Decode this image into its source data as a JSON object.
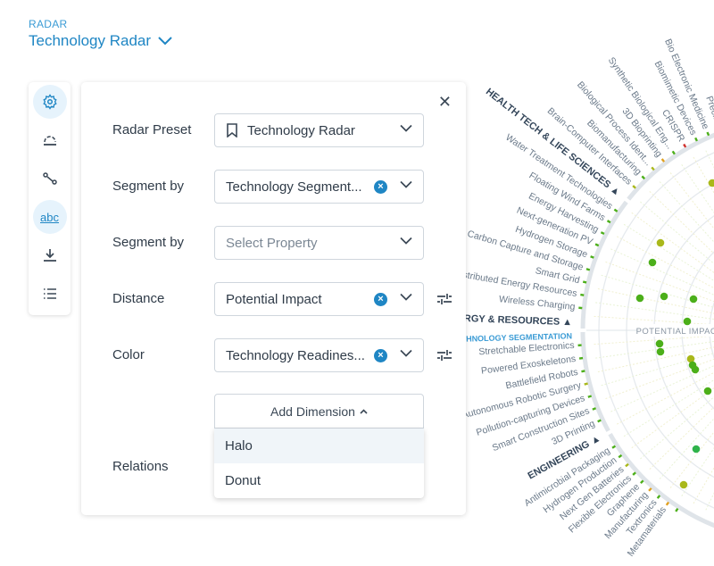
{
  "header": {
    "kicker": "RADAR",
    "title": "Technology Radar"
  },
  "rail": [
    {
      "icon": "gear-icon",
      "active": true
    },
    {
      "icon": "arc-icon"
    },
    {
      "icon": "relations-icon"
    },
    {
      "icon": "abc-label-icon",
      "label": "abc",
      "active": true
    },
    {
      "icon": "download-icon"
    },
    {
      "icon": "list-icon"
    }
  ],
  "panel": {
    "fields": [
      {
        "label": "Radar Preset",
        "value": "Technology Radar",
        "icon": "bookmark-icon"
      },
      {
        "label": "Segment by",
        "value": "Technology Segment...",
        "clearable": true
      },
      {
        "label": "Segment by",
        "placeholder": "Select Property"
      },
      {
        "label": "Distance",
        "value": "Potential Impact",
        "clearable": true,
        "tune": true
      },
      {
        "label": "Color",
        "value": "Technology Readines...",
        "clearable": true,
        "tune": true
      }
    ],
    "add_dimension": "Add Dimension",
    "dimension_options": [
      "Halo",
      "Donut"
    ],
    "relations_label": "Relations"
  },
  "radar": {
    "axis_label": "POTENTIAL IMPACT",
    "segment_property": "TECHNOLOGY SEGMENTATION",
    "segments": [
      {
        "name": "HEALTH TECH & LIFE SCIENCES",
        "items": [
          {
            "name": "Brain-Computer Interfaces",
            "color": "#a9b81a"
          },
          {
            "name": "Biomanufacturing",
            "color": "#4caf1a"
          },
          {
            "name": "Biological Process Ident...",
            "color": "#a9b81a"
          },
          {
            "name": "3D Bioprinting",
            "color": "#e0a020"
          },
          {
            "name": "Synthetic Biological Eng...",
            "color": "#4caf1a"
          },
          {
            "name": "CRISPR",
            "color": "#d0312d"
          },
          {
            "name": "Biomimetic Devices",
            "color": "#4caf1a"
          },
          {
            "name": "Bio Electronic Medicine",
            "color": "#4caf1a"
          },
          {
            "name": "Preci...",
            "color": "#4caf1a"
          }
        ]
      },
      {
        "name": "ENERGY & RESOURCES",
        "items": [
          {
            "name": "Water Treatment Technologies",
            "color": "#4caf1a"
          },
          {
            "name": "Floating Wind Farms",
            "color": "#4caf1a"
          },
          {
            "name": "Energy Harvesting",
            "color": "#4caf1a"
          },
          {
            "name": "Next-generation PV",
            "color": "#4caf1a"
          },
          {
            "name": "Hydrogen Storage",
            "color": "#4caf1a"
          },
          {
            "name": "Carbon Capture and Storage",
            "color": "#4caf1a"
          },
          {
            "name": "Smart Grid",
            "color": "#4caf1a"
          },
          {
            "name": "Distributed Energy Resources",
            "color": "#4caf1a"
          },
          {
            "name": "Wireless Charging",
            "color": "#4caf1a"
          }
        ]
      },
      {
        "name": "ENGINEERING",
        "items": [
          {
            "name": "Stretchable Electronics",
            "color": "#4caf1a"
          },
          {
            "name": "Powered Exoskeletons",
            "color": "#4caf1a"
          },
          {
            "name": "Battlefield Robots",
            "color": "#4caf1a"
          },
          {
            "name": "Autonomous Robotic Surgery",
            "color": "#a9b81a"
          },
          {
            "name": "Pollution-capturing Devices",
            "color": "#4caf1a"
          },
          {
            "name": "Smart Construction Sites",
            "color": "#4caf1a"
          },
          {
            "name": "3D Printing",
            "color": "#4caf1a"
          }
        ]
      },
      {
        "name": "",
        "items": [
          {
            "name": "Antimicrobial Packaging",
            "color": "#4caf1a"
          },
          {
            "name": "Hydrogen Production",
            "color": "#4caf1a"
          },
          {
            "name": "Next Gen Batteries",
            "color": "#a9b81a"
          },
          {
            "name": "Flexible Electronics",
            "color": "#4caf1a"
          },
          {
            "name": "Graphene",
            "color": "#4caf1a"
          },
          {
            "name": "Manufacturing",
            "color": "#e0a020"
          },
          {
            "name": "Textronics",
            "color": "#4caf1a"
          },
          {
            "name": "Metamaterials",
            "color": "#e0a020"
          },
          {
            "name": "",
            "color": "#4caf1a"
          }
        ]
      }
    ]
  }
}
